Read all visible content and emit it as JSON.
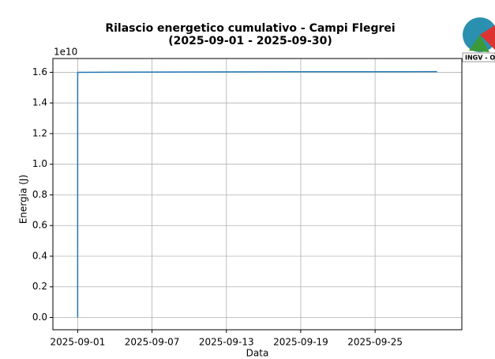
{
  "chart_data": {
    "type": "line",
    "title": "Rilascio energetico cumulativo - Campi Flegrei",
    "subtitle": "(2025-09-01 - 2025-09-30)",
    "x_label": "Data",
    "y_label": "Energia (J)",
    "y_offset_text": "1e10",
    "logo_text": "INGV - O",
    "x": [
      "2025-09-01",
      "2025-09-01",
      "2025-09-04",
      "2025-09-15",
      "2025-09-30"
    ],
    "values": [
      0,
      1.6,
      1.601,
      1.603,
      1.604
    ],
    "color": "#1f77b4",
    "xlim": [
      "2025-08-30",
      "2025-10-02"
    ],
    "xticks": [
      "2025-09-01",
      "2025-09-07",
      "2025-09-13",
      "2025-09-19",
      "2025-09-25"
    ],
    "ylim": [
      -0.08,
      1.69
    ],
    "yticks": [
      {
        "value": 0,
        "label": "0.0"
      },
      0.2,
      0.4,
      0.6,
      0.8,
      {
        "value": 1,
        "label": "1.0"
      },
      1.2,
      1.4,
      1.6
    ],
    "grid": true
  }
}
